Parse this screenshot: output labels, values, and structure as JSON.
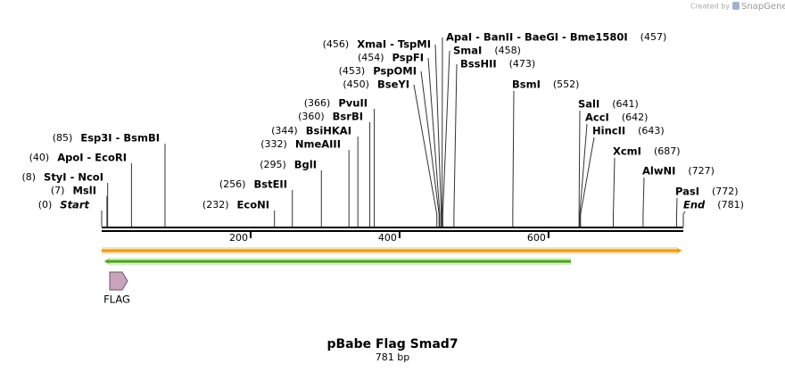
{
  "credit": "Created by",
  "brand": "SnapGene",
  "title": "pBabe Flag Smad7",
  "subtitle": "781 bp",
  "length": 781,
  "ruler_ticks": [
    200,
    400,
    600
  ],
  "sites": [
    {
      "name": "Start",
      "position": {
        "value": 0,
        "label": "(0)"
      }
    },
    {
      "name": "MslI",
      "position": {
        "value": 7,
        "label": "(7)"
      }
    },
    {
      "name": "StyI  - NcoI",
      "position": {
        "value": 8,
        "label": "(8)"
      }
    },
    {
      "name": "ApoI  - EcoRI",
      "position": {
        "value": 40,
        "label": "(40)"
      }
    },
    {
      "name": "Esp3I  - BsmBI",
      "position": {
        "value": 85,
        "label": "(85)"
      }
    },
    {
      "name": "EcoNI",
      "position": {
        "value": 232,
        "label": "(232)"
      }
    },
    {
      "name": "BstEII",
      "position": {
        "value": 256,
        "label": "(256)"
      }
    },
    {
      "name": "BglI",
      "position": {
        "value": 295,
        "label": "(295)"
      }
    },
    {
      "name": "NmeAIII",
      "position": {
        "value": 332,
        "label": "(332)"
      }
    },
    {
      "name": "BsiHKAI",
      "position": {
        "value": 344,
        "label": "(344)"
      }
    },
    {
      "name": "BsrBI",
      "position": {
        "value": 360,
        "label": "(360)"
      }
    },
    {
      "name": "PvuII",
      "position": {
        "value": 366,
        "label": "(366)"
      }
    },
    {
      "name": "BseYI",
      "position": {
        "value": 450,
        "label": "(450)"
      }
    },
    {
      "name": "PspOMI",
      "position": {
        "value": 453,
        "label": "(453)"
      }
    },
    {
      "name": "PspFI",
      "position": {
        "value": 454,
        "label": "(454)"
      }
    },
    {
      "name": "XmaI  - TspMI",
      "position": {
        "value": 456,
        "label": "(456)"
      }
    },
    {
      "name": "ApaI  - BanII  - BaeGI  - Bme1580I",
      "position": {
        "value": 457,
        "label": "(457)"
      }
    },
    {
      "name": "SmaI",
      "position": {
        "value": 458,
        "label": "(458)"
      }
    },
    {
      "name": "BssHII",
      "position": {
        "value": 473,
        "label": "(473)"
      }
    },
    {
      "name": "BsmI",
      "position": {
        "value": 552,
        "label": "(552)"
      }
    },
    {
      "name": "SalI",
      "position": {
        "value": 641,
        "label": "(641)"
      }
    },
    {
      "name": "AccI",
      "position": {
        "value": 642,
        "label": "(642)"
      }
    },
    {
      "name": "HincII",
      "position": {
        "value": 643,
        "label": "(643)"
      }
    },
    {
      "name": "XcmI",
      "position": {
        "value": 687,
        "label": "(687)"
      }
    },
    {
      "name": "AlwNI",
      "position": {
        "value": 727,
        "label": "(727)"
      }
    },
    {
      "name": "PasI",
      "position": {
        "value": 772,
        "label": "(772)"
      }
    },
    {
      "name": "End",
      "position": {
        "value": 781,
        "label": "(781)"
      }
    }
  ],
  "features": [
    {
      "name": "FLAG"
    }
  ]
}
